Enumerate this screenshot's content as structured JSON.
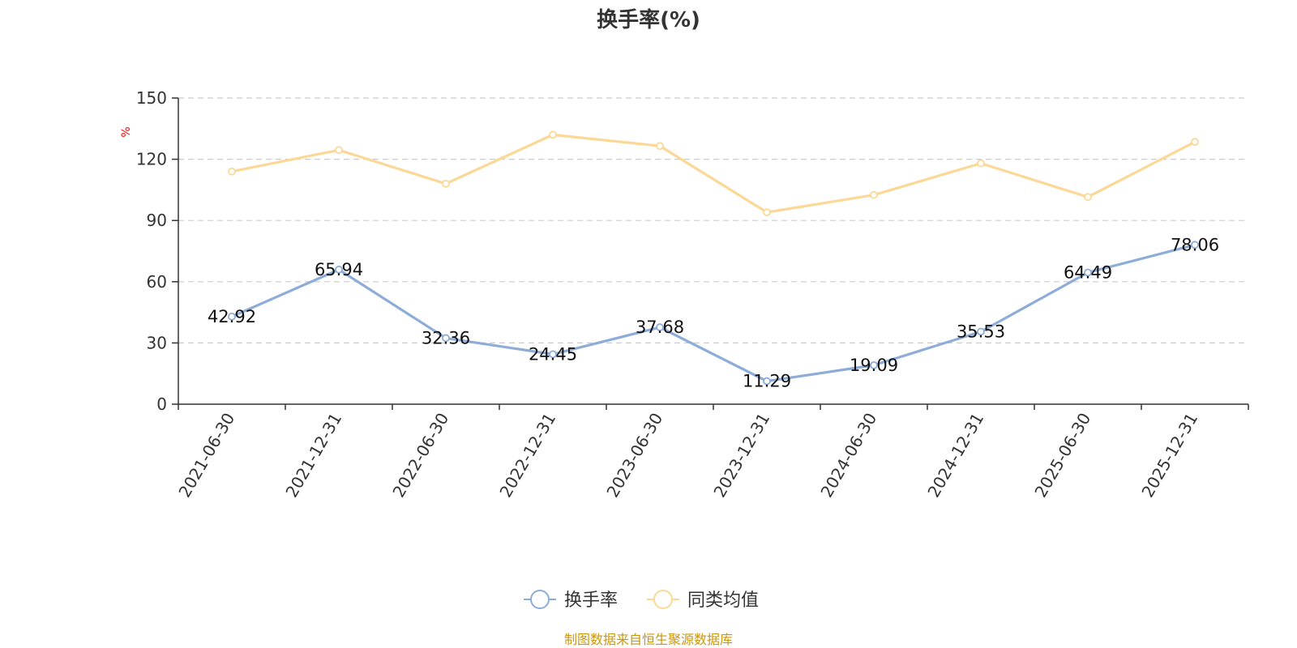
{
  "chart_data": {
    "type": "line",
    "title": "换手率(%)",
    "ylabel": "%",
    "categories": [
      "2021-06-30",
      "2021-12-31",
      "2022-06-30",
      "2022-12-31",
      "2023-06-30",
      "2023-12-31",
      "2024-06-30",
      "2024-12-31",
      "2025-06-30",
      "2025-12-31"
    ],
    "ylim": [
      0,
      150
    ],
    "yticks": [
      "0",
      "30",
      "60",
      "90",
      "120",
      "150"
    ],
    "grid": true,
    "legend_position": "bottom-center",
    "series": [
      {
        "name": "换手率",
        "color": "#8eacd8",
        "values": [
          42.92,
          65.94,
          32.36,
          24.45,
          37.68,
          11.29,
          19.09,
          35.53,
          64.49,
          78.06
        ],
        "labels": [
          "42.92",
          "65.94",
          "32.36",
          "24.45",
          "37.68",
          "11.29",
          "19.09",
          "35.53",
          "64.49",
          "78.06"
        ]
      },
      {
        "name": "同类均值",
        "color": "#fbd896",
        "values": [
          114,
          124.5,
          108,
          132,
          126.5,
          94,
          102.5,
          118,
          101.5,
          128.5
        ]
      }
    ]
  },
  "footer": {
    "source": "制图数据来自恒生聚源数据库",
    "color": "#c9960c"
  },
  "unit_color": "#ff0000"
}
